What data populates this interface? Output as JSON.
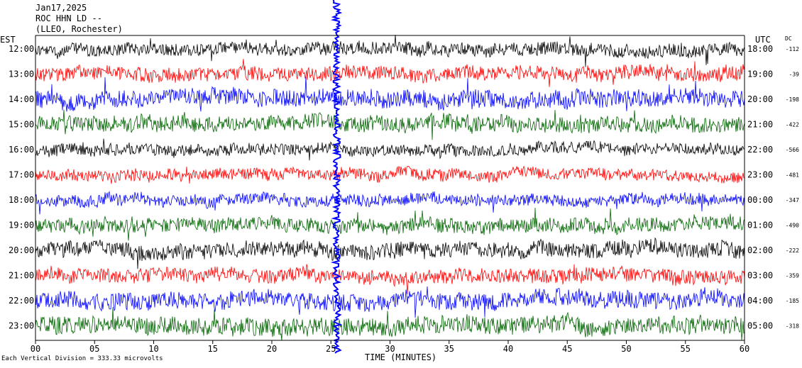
{
  "header": {
    "date": "Jan17,2025",
    "station": "ROC HHN LD --",
    "location": "(LLEO, Rochester)"
  },
  "footer": {
    "note": "Each Vertical Division = 333.33 microvolts"
  },
  "chart_data": {
    "type": "line",
    "title": "",
    "xlabel": "TIME (MINUTES)",
    "left_axis_label": "EST",
    "right_axis_label": "UTC",
    "dc_label": "DC",
    "xlim": [
      0,
      60
    ],
    "x_ticks": [
      "00",
      "05",
      "10",
      "15",
      "20",
      "25",
      "30",
      "35",
      "40",
      "45",
      "50",
      "55",
      "60"
    ],
    "rows": [
      {
        "est": "12:00",
        "utc": "18:00",
        "dc": "-112",
        "color": "#000000",
        "amplitude": 9,
        "burst": 0.8
      },
      {
        "est": "13:00",
        "utc": "19:00",
        "dc": "-39",
        "color": "#ff0000",
        "amplitude": 10,
        "burst": 0.9
      },
      {
        "est": "14:00",
        "utc": "20:00",
        "dc": "-198",
        "color": "#0000ff",
        "amplitude": 12,
        "burst": 1.0
      },
      {
        "est": "15:00",
        "utc": "21:00",
        "dc": "-422",
        "color": "#006400",
        "amplitude": 11,
        "burst": 0.6
      },
      {
        "est": "16:00",
        "utc": "22:00",
        "dc": "-566",
        "color": "#000000",
        "amplitude": 8,
        "burst": 0.3
      },
      {
        "est": "17:00",
        "utc": "23:00",
        "dc": "-481",
        "color": "#ff0000",
        "amplitude": 8,
        "burst": 0.3
      },
      {
        "est": "18:00",
        "utc": "00:00",
        "dc": "-347",
        "color": "#0000ff",
        "amplitude": 8,
        "burst": 0.3
      },
      {
        "est": "19:00",
        "utc": "01:00",
        "dc": "-490",
        "color": "#006400",
        "amplitude": 10,
        "burst": 0.3
      },
      {
        "est": "20:00",
        "utc": "02:00",
        "dc": "-222",
        "color": "#000000",
        "amplitude": 11,
        "burst": 0.3
      },
      {
        "est": "21:00",
        "utc": "03:00",
        "dc": "-359",
        "color": "#ff0000",
        "amplitude": 10,
        "burst": 0.3
      },
      {
        "est": "22:00",
        "utc": "04:00",
        "dc": "-185",
        "color": "#0000ff",
        "amplitude": 12,
        "burst": 0.4
      },
      {
        "est": "23:00",
        "utc": "05:00",
        "dc": "-318",
        "color": "#006400",
        "amplitude": 12,
        "burst": 0.4
      }
    ],
    "event_minute": 25.5,
    "event_color": "#0000ff",
    "grid": false
  }
}
